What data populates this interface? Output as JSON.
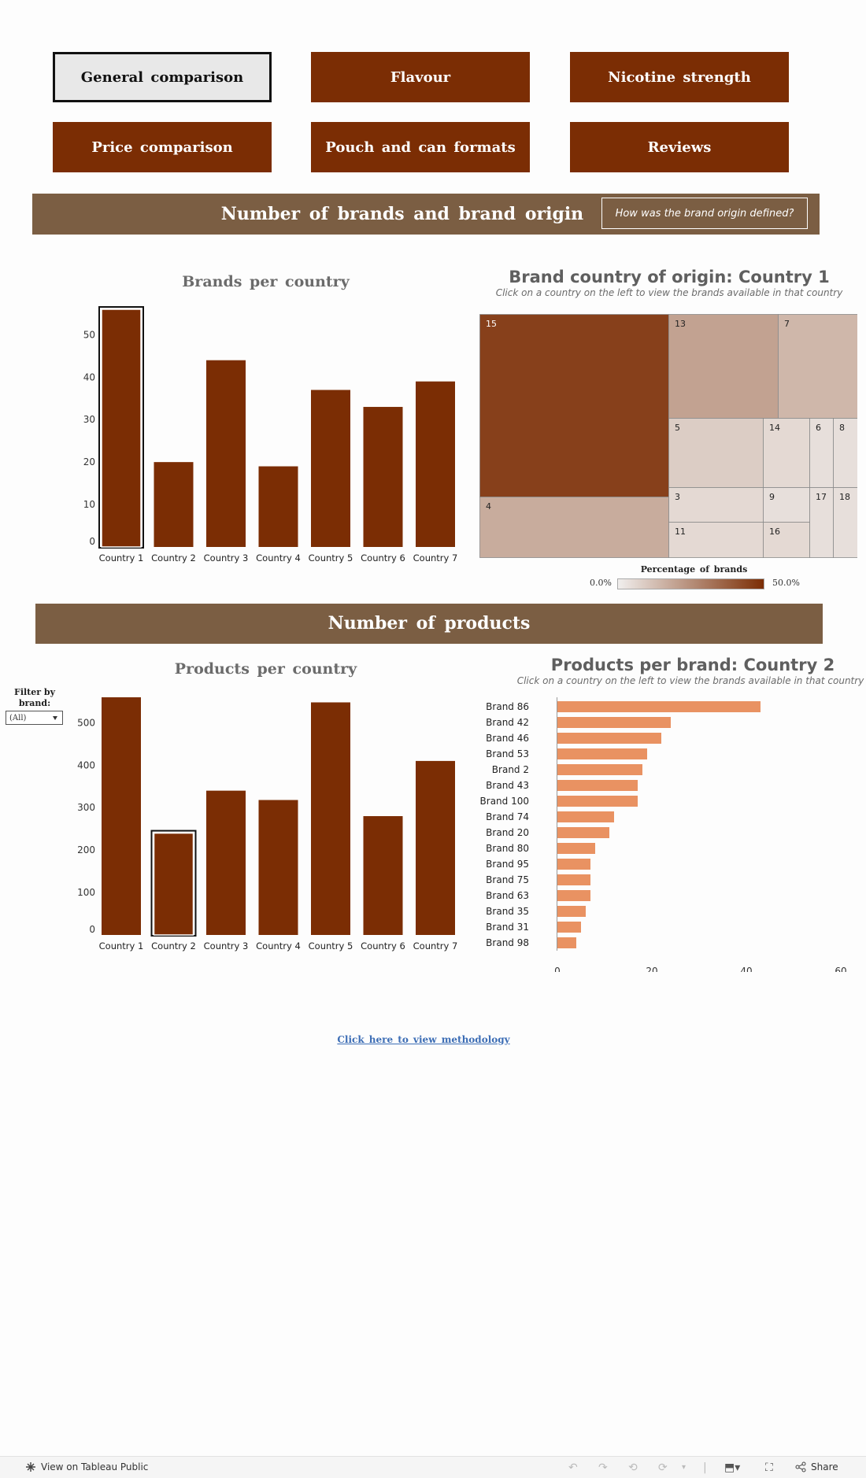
{
  "nav": [
    {
      "label": "General comparison",
      "active": true
    },
    {
      "label": "Flavour",
      "active": false
    },
    {
      "label": "Nicotine strength",
      "active": false
    },
    {
      "label": "Price comparison",
      "active": false
    },
    {
      "label": "Pouch and can formats",
      "active": false
    },
    {
      "label": "Reviews",
      "active": false
    }
  ],
  "section1": {
    "title": "Number of brands and brand origin",
    "origin_button": "How was the brand origin defined?"
  },
  "section2": {
    "title": "Number of products"
  },
  "filter": {
    "label": "Filter by brand:",
    "value": "(All)"
  },
  "methodology_link": "Click here to view methodology",
  "footer": {
    "view_label": "View on Tableau Public",
    "share_label": "Share"
  },
  "colors": {
    "bar": "#7b2d04",
    "band": "#7b5e43",
    "hbar": "#e99262",
    "link": "#3c6db5"
  },
  "chart_data": [
    {
      "id": "brands_per_country",
      "type": "bar",
      "title": "Brands per country",
      "categories": [
        "Country 1",
        "Country 2",
        "Country 3",
        "Country 4",
        "Country 5",
        "Country 6",
        "Country 7"
      ],
      "values": [
        56,
        20,
        44,
        19,
        37,
        33,
        39
      ],
      "ylim": [
        0,
        56
      ],
      "yticks": [
        0,
        10,
        20,
        30,
        40,
        50
      ],
      "selected": "Country 1"
    },
    {
      "id": "brand_origin_treemap",
      "type": "heatmap",
      "title": "Brand country of origin: Country 1",
      "subtitle": "Click on a country on the left to view the brands available in that country",
      "legend": {
        "title": "Percentage of brands",
        "min_label": "0.0%",
        "max_label": "50.0%"
      },
      "cells": [
        {
          "label": "15",
          "share": 0.34
        },
        {
          "label": "4",
          "share": 0.11
        },
        {
          "label": "13",
          "share": 0.13
        },
        {
          "label": "7",
          "share": 0.09
        },
        {
          "label": "5",
          "share": 0.05
        },
        {
          "label": "14",
          "share": 0.03
        },
        {
          "label": "6",
          "share": 0.02
        },
        {
          "label": "8",
          "share": 0.02
        },
        {
          "label": "3",
          "share": 0.03
        },
        {
          "label": "9",
          "share": 0.02
        },
        {
          "label": "17",
          "share": 0.02
        },
        {
          "label": "18",
          "share": 0.02
        },
        {
          "label": "11",
          "share": 0.03
        },
        {
          "label": "16",
          "share": 0.03
        }
      ]
    },
    {
      "id": "products_per_country",
      "type": "bar",
      "title": "Products per country",
      "categories": [
        "Country 1",
        "Country 2",
        "Country 3",
        "Country 4",
        "Country 5",
        "Country 6",
        "Country 7"
      ],
      "values": [
        560,
        240,
        340,
        318,
        548,
        280,
        410
      ],
      "ylim": [
        0,
        560
      ],
      "yticks": [
        0,
        100,
        200,
        300,
        400,
        500
      ],
      "selected": "Country 2"
    },
    {
      "id": "products_per_brand",
      "type": "bar",
      "orientation": "horizontal",
      "title": "Products per brand: Country 2",
      "subtitle": "Click on a country on the left to view the brands available in that country",
      "categories": [
        "Brand 86",
        "Brand 42",
        "Brand 46",
        "Brand 53",
        "Brand 2",
        "Brand 43",
        "Brand 100",
        "Brand 74",
        "Brand 20",
        "Brand 80",
        "Brand 95",
        "Brand 75",
        "Brand 63",
        "Brand 35",
        "Brand 31",
        "Brand 98"
      ],
      "values": [
        43,
        24,
        22,
        19,
        18,
        17,
        17,
        12,
        11,
        8,
        7,
        7,
        7,
        6,
        5,
        4
      ],
      "xlim": [
        0,
        60
      ],
      "xticks": [
        0,
        20,
        40,
        60
      ]
    }
  ]
}
